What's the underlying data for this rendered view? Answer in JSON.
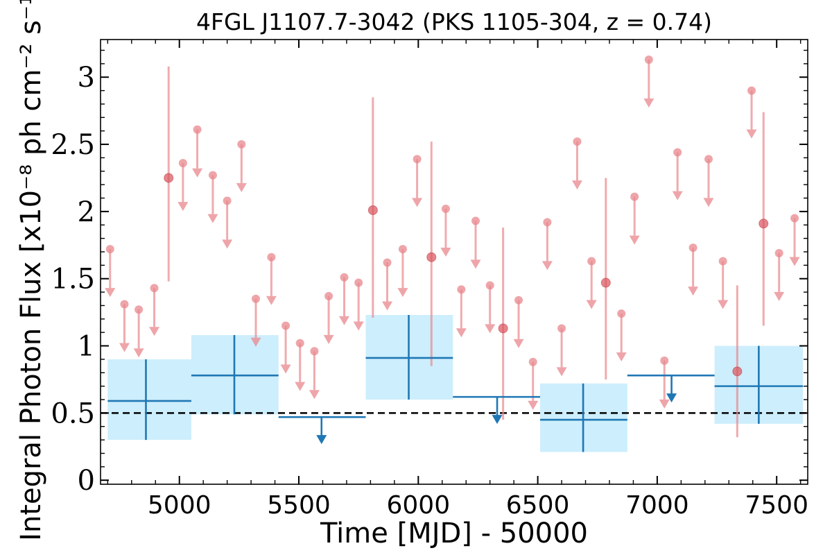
{
  "chart_data": {
    "type": "scatter",
    "title": "4FGL J1107.7-3042 (PKS 1105-304, z = 0.74)",
    "xlabel": "Time [MJD] - 50000",
    "ylabel": "Integral Photon Flux [x10⁻⁸ ph cm⁻² s⁻¹]",
    "xlim": [
      4670,
      7630
    ],
    "ylim": [
      -0.03,
      3.28
    ],
    "xticks": [
      5000,
      5500,
      6000,
      6500,
      7000,
      7500
    ],
    "xtick_labels": [
      "5000",
      "5500",
      "6000",
      "6500",
      "7000",
      "7500"
    ],
    "yticks": [
      0,
      0.5,
      1,
      1.5,
      2,
      2.5,
      3
    ],
    "ytick_labels": [
      "0",
      "0.5",
      "1",
      "1.5",
      "2",
      "2.5",
      "3"
    ],
    "reference_line": {
      "y": 0.5,
      "style": "dashed",
      "color": "#000000"
    },
    "colors": {
      "monthly": "#e8878c",
      "yearly": "#1f77b4",
      "yearly_band": "#cdeefc"
    },
    "monthly_detections": [
      {
        "x": 4955,
        "y": 2.25,
        "ylo": 1.48,
        "yhi": 3.08
      },
      {
        "x": 5810,
        "y": 2.01,
        "ylo": 1.21,
        "yhi": 2.85
      },
      {
        "x": 6055,
        "y": 1.66,
        "ylo": 0.85,
        "yhi": 2.52
      },
      {
        "x": 6355,
        "y": 1.13,
        "ylo": 0.45,
        "yhi": 1.88
      },
      {
        "x": 6785,
        "y": 1.47,
        "ylo": 0.75,
        "yhi": 2.25
      },
      {
        "x": 7335,
        "y": 0.81,
        "ylo": 0.32,
        "yhi": 1.45
      },
      {
        "x": 7445,
        "y": 1.91,
        "ylo": 1.15,
        "yhi": 2.74
      }
    ],
    "monthly_upper_limits": [
      {
        "x": 4710,
        "y": 1.72
      },
      {
        "x": 4770,
        "y": 1.31
      },
      {
        "x": 4830,
        "y": 1.27
      },
      {
        "x": 4895,
        "y": 1.43
      },
      {
        "x": 5015,
        "y": 2.36
      },
      {
        "x": 5075,
        "y": 2.61
      },
      {
        "x": 5140,
        "y": 2.27
      },
      {
        "x": 5200,
        "y": 2.08
      },
      {
        "x": 5260,
        "y": 2.5
      },
      {
        "x": 5320,
        "y": 1.35
      },
      {
        "x": 5385,
        "y": 1.66
      },
      {
        "x": 5445,
        "y": 1.15
      },
      {
        "x": 5505,
        "y": 1.02
      },
      {
        "x": 5565,
        "y": 0.96
      },
      {
        "x": 5625,
        "y": 1.37
      },
      {
        "x": 5690,
        "y": 1.51
      },
      {
        "x": 5750,
        "y": 1.47
      },
      {
        "x": 5870,
        "y": 1.62
      },
      {
        "x": 5935,
        "y": 1.72
      },
      {
        "x": 5995,
        "y": 2.39
      },
      {
        "x": 6115,
        "y": 2.02
      },
      {
        "x": 6180,
        "y": 1.42
      },
      {
        "x": 6240,
        "y": 1.93
      },
      {
        "x": 6300,
        "y": 1.45
      },
      {
        "x": 6420,
        "y": 1.34
      },
      {
        "x": 6480,
        "y": 0.88
      },
      {
        "x": 6540,
        "y": 1.92
      },
      {
        "x": 6600,
        "y": 1.13
      },
      {
        "x": 6665,
        "y": 2.52
      },
      {
        "x": 6725,
        "y": 1.63
      },
      {
        "x": 6850,
        "y": 1.24
      },
      {
        "x": 6905,
        "y": 2.11
      },
      {
        "x": 6965,
        "y": 3.13
      },
      {
        "x": 7030,
        "y": 0.89
      },
      {
        "x": 7085,
        "y": 2.44
      },
      {
        "x": 7150,
        "y": 1.73
      },
      {
        "x": 7215,
        "y": 2.39
      },
      {
        "x": 7275,
        "y": 1.63
      },
      {
        "x": 7395,
        "y": 2.9
      },
      {
        "x": 7510,
        "y": 1.69
      },
      {
        "x": 7575,
        "y": 1.95
      }
    ],
    "yearly_detections": [
      {
        "x0": 4700,
        "x1": 5050,
        "x": 4860,
        "y": 0.59,
        "band_lo": 0.3,
        "band_hi": 0.9,
        "ylo": 0.3,
        "yhi": 0.9
      },
      {
        "x0": 5050,
        "x1": 5415,
        "x": 5230,
        "y": 0.78,
        "band_lo": 0.49,
        "band_hi": 1.08,
        "ylo": 0.49,
        "yhi": 1.08
      },
      {
        "x0": 5780,
        "x1": 6145,
        "x": 5960,
        "y": 0.91,
        "band_lo": 0.6,
        "band_hi": 1.23,
        "ylo": 0.6,
        "yhi": 1.23
      },
      {
        "x0": 6510,
        "x1": 6875,
        "x": 6690,
        "y": 0.45,
        "band_lo": 0.21,
        "band_hi": 0.72,
        "ylo": 0.21,
        "yhi": 0.72
      },
      {
        "x0": 7240,
        "x1": 7610,
        "x": 7425,
        "y": 0.7,
        "band_lo": 0.42,
        "band_hi": 1.0,
        "ylo": 0.42,
        "yhi": 1.0
      }
    ],
    "yearly_upper_limits": [
      {
        "x0": 5415,
        "x1": 5780,
        "x": 5595,
        "y": 0.47
      },
      {
        "x0": 6145,
        "x1": 6510,
        "x": 6330,
        "y": 0.62
      },
      {
        "x0": 6875,
        "x1": 7240,
        "x": 7060,
        "y": 0.78
      }
    ]
  }
}
